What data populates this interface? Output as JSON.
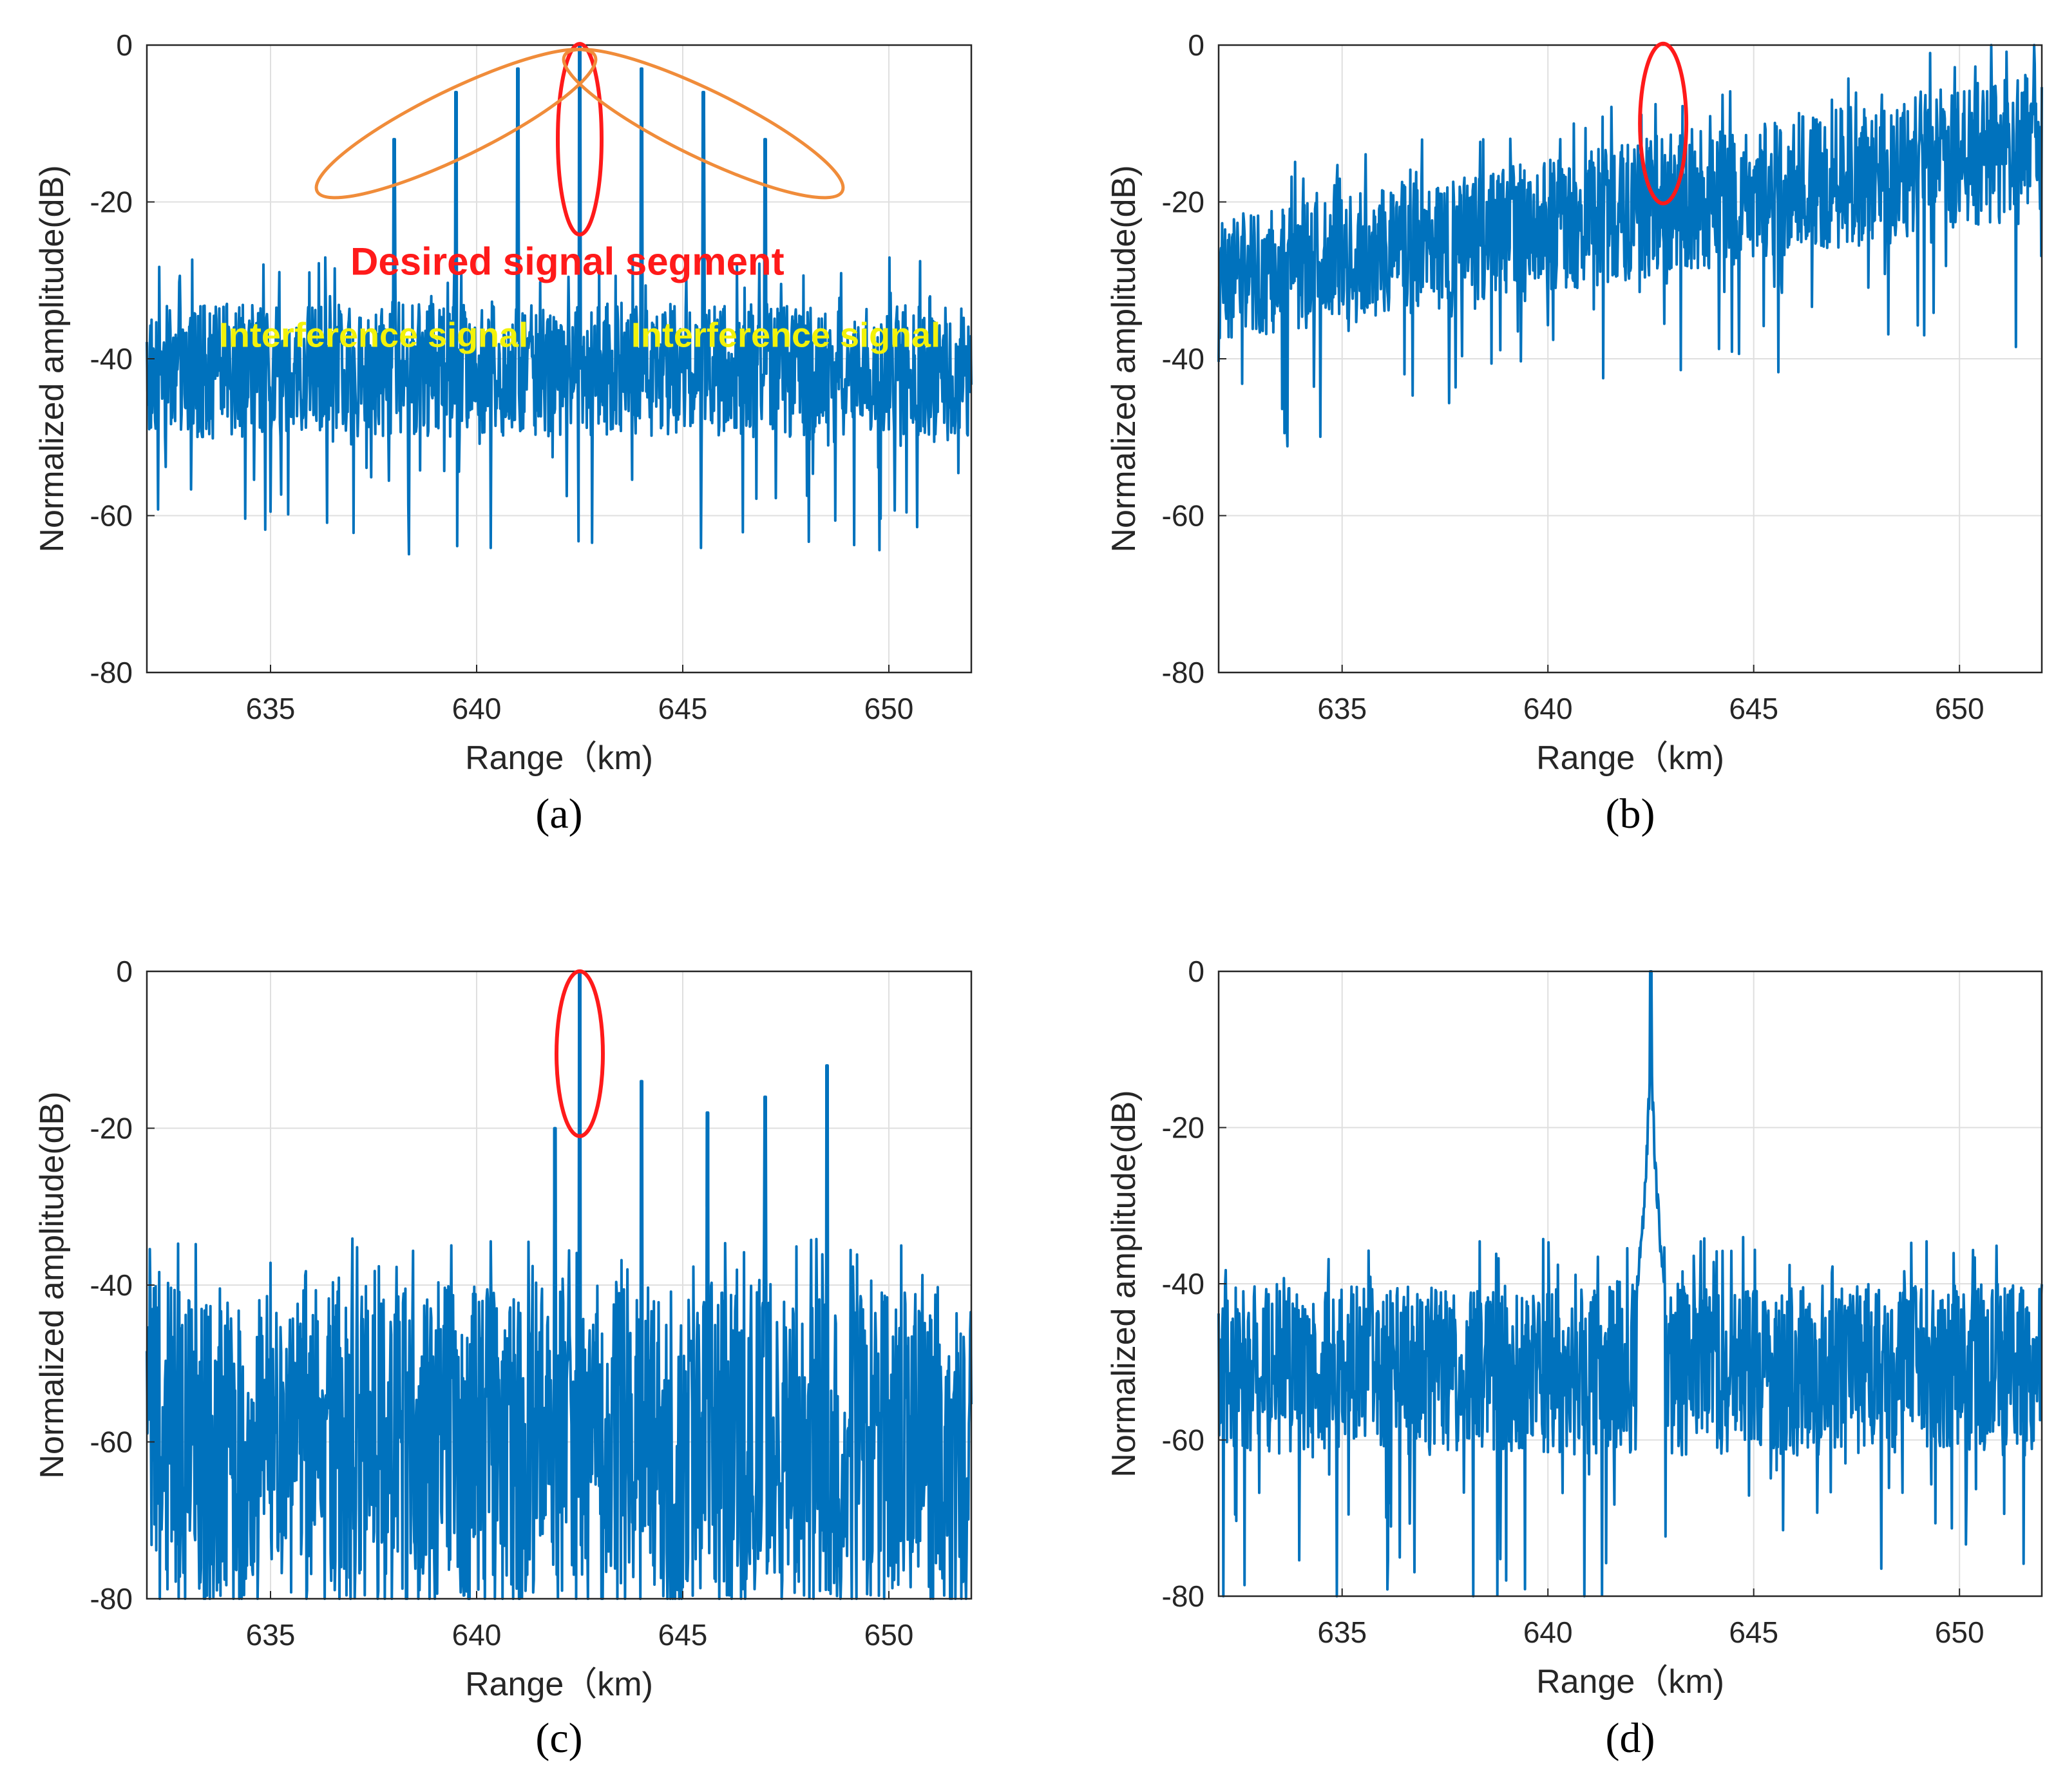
{
  "figure": {
    "panels": [
      "a",
      "b",
      "c",
      "d"
    ]
  },
  "chart_data": [
    {
      "id": "a",
      "panel_label": "(a)",
      "type": "line",
      "xlabel": "Range（km)",
      "ylabel": "Normalized amplitude(dB)",
      "xlim": [
        632,
        652
      ],
      "ylim": [
        -80,
        0
      ],
      "xticks": [
        635,
        640,
        645,
        650
      ],
      "yticks": [
        0,
        -20,
        -40,
        -60,
        -80
      ],
      "grid": true,
      "series_color": "#0072bd",
      "noise_floor_range_dB": [
        -50,
        -33
      ],
      "peaks": [
        {
          "x": 638.0,
          "y": -12
        },
        {
          "x": 639.5,
          "y": -6
        },
        {
          "x": 641.0,
          "y": -3
        },
        {
          "x": 642.5,
          "y": 0
        },
        {
          "x": 644.0,
          "y": -3
        },
        {
          "x": 645.5,
          "y": -6
        },
        {
          "x": 647.0,
          "y": -12
        }
      ],
      "annotations": [
        {
          "text": "Desired signal segment",
          "color": "#ff1a1a"
        },
        {
          "text": "Interference signal",
          "color": "#f2f20a"
        },
        {
          "text": "Interference signal",
          "color": "#f2f20a"
        }
      ]
    },
    {
      "id": "b",
      "panel_label": "(b)",
      "type": "line",
      "xlabel": "Range（km)",
      "ylabel": "Normalized amplitude(dB)",
      "xlim": [
        632,
        652
      ],
      "ylim": [
        -80,
        0
      ],
      "xticks": [
        635,
        640,
        645,
        650
      ],
      "yticks": [
        0,
        -20,
        -40,
        -60,
        -80
      ],
      "grid": true,
      "series_color": "#0072bd",
      "noise_floor_start_dB": [
        -38,
        -22
      ],
      "noise_floor_end_dB": [
        -22,
        -3
      ],
      "highlight_x": 642.8
    },
    {
      "id": "c",
      "panel_label": "(c)",
      "type": "line",
      "xlabel": "Range（km)",
      "ylabel": "Normalized amplitude(dB)",
      "xlim": [
        632,
        652
      ],
      "ylim": [
        -80,
        0
      ],
      "xticks": [
        635,
        640,
        645,
        650
      ],
      "yticks": [
        0,
        -20,
        -40,
        -60,
        -80
      ],
      "grid": true,
      "series_color": "#0072bd",
      "noise_floor_range_dB": [
        -80,
        -40
      ],
      "peaks": [
        {
          "x": 642.5,
          "y": 0
        },
        {
          "x": 644.0,
          "y": -14
        },
        {
          "x": 645.6,
          "y": -18
        },
        {
          "x": 647.0,
          "y": -16
        },
        {
          "x": 648.5,
          "y": -12
        },
        {
          "x": 641.9,
          "y": -20
        }
      ],
      "highlight_x": 642.5
    },
    {
      "id": "d",
      "panel_label": "(d)",
      "type": "line",
      "xlabel": "Range（km)",
      "ylabel": "Normalized amplitude(dB)",
      "xlim": [
        632,
        652
      ],
      "ylim": [
        -80,
        0
      ],
      "xticks": [
        635,
        640,
        645,
        650
      ],
      "yticks": [
        0,
        -20,
        -40,
        -60,
        -80
      ],
      "grid": true,
      "series_color": "#0072bd",
      "noise_floor_range_dB": [
        -62,
        -40
      ],
      "peaks": [
        {
          "x": 642.5,
          "y": 0
        }
      ]
    }
  ]
}
